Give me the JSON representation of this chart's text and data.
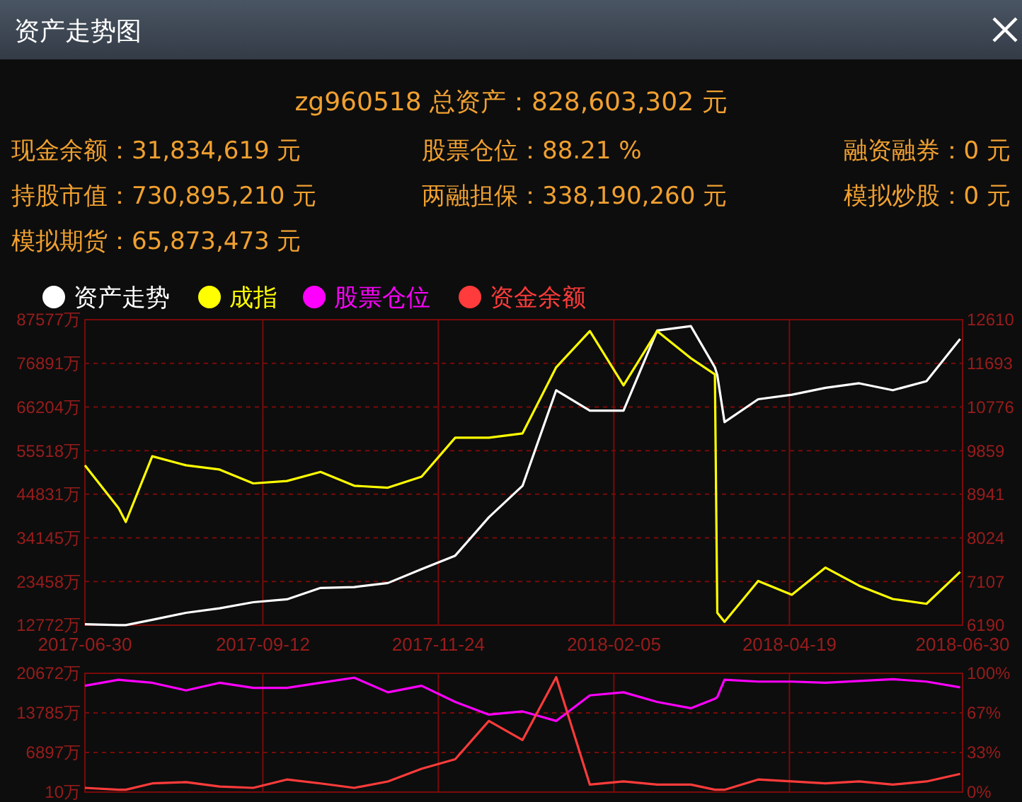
{
  "chart_data": [
    {
      "type": "line",
      "title": "资产走势图",
      "annotations": [
        "zg960518 总资产：828,603,302 元",
        "现金余额：31,834,619 元",
        "股票仓位：88.21 %",
        "融资融券：0 元",
        "持股市值：730,895,210 元",
        "两融担保：338,190,260 元",
        "模拟炒股：0 元",
        "模拟期货：65,873,473 元"
      ],
      "x": [
        "2017-06-30",
        "2017-07-14",
        "2017-07-17",
        "2017-07-28",
        "2017-08-11",
        "2017-08-25",
        "2017-09-08",
        "2017-09-22",
        "2017-10-06",
        "2017-10-20",
        "2017-11-03",
        "2017-11-17",
        "2017-12-01",
        "2017-12-15",
        "2017-12-29",
        "2018-01-12",
        "2018-01-26",
        "2018-02-09",
        "2018-02-23",
        "2018-03-09",
        "2018-03-19",
        "2018-03-20",
        "2018-03-23",
        "2018-04-06",
        "2018-04-20",
        "2018-05-04",
        "2018-05-18",
        "2018-06-01",
        "2018-06-15",
        "2018-06-29"
      ],
      "series": [
        {
          "name": "资产走势",
          "color": "#ffffff",
          "values": [
            13000,
            12800,
            12800,
            14100,
            15800,
            16900,
            18400,
            19100,
            21900,
            22100,
            23100,
            26500,
            29800,
            39200,
            46900,
            70300,
            65300,
            65300,
            84900,
            86000,
            75900,
            74000,
            62500,
            68100,
            69200,
            70900,
            72000,
            70300,
            72500,
            82860
          ]
        },
        {
          "name": "成指",
          "color": "#ffff00",
          "axis": "y2",
          "values": [
            9550,
            8650,
            8360,
            9740,
            9550,
            9460,
            9170,
            9220,
            9410,
            9120,
            9080,
            9310,
            10130,
            10130,
            10220,
            11610,
            12370,
            11230,
            12370,
            11800,
            11460,
            6450,
            6260,
            7120,
            6830,
            7400,
            7020,
            6740,
            6640,
            7310
          ]
        }
      ],
      "xlim": [
        "2017-06-30",
        "2018-06-30"
      ],
      "xticks": [
        {
          "value": "2017-06-30",
          "label": "2017-06-30"
        },
        {
          "value": "2017-09-12",
          "label": "2017-09-12"
        },
        {
          "value": "2017-11-24",
          "label": "2017-11-24"
        },
        {
          "value": "2018-02-05",
          "label": "2018-02-05"
        },
        {
          "value": "2018-04-19",
          "label": "2018-04-19"
        },
        {
          "value": "2018-06-30",
          "label": "2018-06-30"
        }
      ],
      "ylim": [
        12772,
        87577
      ],
      "yticks": [
        {
          "value": 12772,
          "label": "12772万"
        },
        {
          "value": 23458,
          "label": "23458万"
        },
        {
          "value": 34145,
          "label": "34145万"
        },
        {
          "value": 44831,
          "label": "44831万"
        },
        {
          "value": 55518,
          "label": "55518万"
        },
        {
          "value": 66204,
          "label": "66204万"
        },
        {
          "value": 76891,
          "label": "76891万"
        },
        {
          "value": 87577,
          "label": "87577万"
        }
      ],
      "y2lim": [
        6190,
        12610
      ],
      "y2ticks": [
        6190,
        7107,
        8024,
        8941,
        9859,
        10776,
        11693,
        12610
      ],
      "grid": true,
      "legend": "top"
    },
    {
      "type": "line",
      "x": [
        "2017-06-30",
        "2017-07-14",
        "2017-07-17",
        "2017-07-28",
        "2017-08-11",
        "2017-08-25",
        "2017-09-08",
        "2017-09-22",
        "2017-10-06",
        "2017-10-20",
        "2017-11-03",
        "2017-11-17",
        "2017-12-01",
        "2017-12-15",
        "2017-12-29",
        "2018-01-12",
        "2018-01-26",
        "2018-02-09",
        "2018-02-23",
        "2018-03-09",
        "2018-03-19",
        "2018-03-20",
        "2018-03-23",
        "2018-04-06",
        "2018-04-20",
        "2018-05-04",
        "2018-05-18",
        "2018-06-01",
        "2018-06-15",
        "2018-06-29"
      ],
      "series": [
        {
          "name": "股票仓位",
          "color": "#ff00ff",
          "axis": "y2",
          "values": [
            89.5,
            94.6,
            94,
            92,
            85.6,
            92,
            87.7,
            87.7,
            92,
            96.3,
            84,
            89.5,
            75.9,
            65.2,
            67.9,
            59.9,
            81.4,
            84,
            75.9,
            70.6,
            78.6,
            80,
            94.6,
            93,
            93,
            92,
            93.5,
            95,
            93,
            88.2
          ]
        },
        {
          "name": "资金余额",
          "color": "#ff3b3b",
          "values": [
            750,
            420,
            420,
            1520,
            1740,
            970,
            750,
            2200,
            1520,
            750,
            1860,
            4070,
            5730,
            12380,
            9070,
            20000,
            1310,
            1860,
            1310,
            1310,
            420,
            420,
            420,
            2200,
            1860,
            1520,
            1860,
            1310,
            1860,
            3183
          ]
        }
      ],
      "xlim": [
        "2017-06-30",
        "2018-06-30"
      ],
      "xticks": [
        "2017-06-30",
        "2017-09-12",
        "2017-11-24",
        "2018-02-05",
        "2018-04-19",
        "2018-06-30"
      ],
      "tick_labels": "y",
      "ylim": [
        10,
        20672
      ],
      "yticks": [
        {
          "value": 10,
          "label": "10万"
        },
        {
          "value": 6897,
          "label": "6897万"
        },
        {
          "value": 13785,
          "label": "13785万"
        },
        {
          "value": 20672,
          "label": "20672万"
        }
      ],
      "y2lim": [
        0,
        100
      ],
      "y2ticks": [
        {
          "value": 0,
          "label": "0%"
        },
        {
          "value": 33.33,
          "label": "33%"
        },
        {
          "value": 66.67,
          "label": "67%"
        },
        {
          "value": 100,
          "label": "100%"
        }
      ],
      "grid": true,
      "legend": "top"
    }
  ]
}
